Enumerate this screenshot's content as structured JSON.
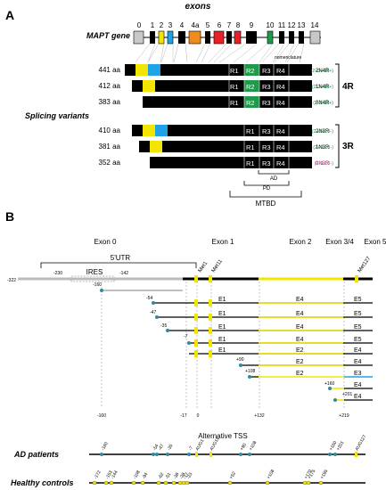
{
  "panel_a": {
    "label": "A",
    "exons_title": "exons",
    "gene_label": "MAPT gene",
    "exon_numbers": [
      "0",
      "1",
      "2",
      "3",
      "4",
      "4a",
      "5",
      "6",
      "7",
      "8",
      "9",
      "10",
      "11",
      "12",
      "13",
      "14"
    ],
    "nomenclature_label": "nomenclature",
    "splicing_label": "Splicing variants",
    "variants": [
      {
        "aa": "441 aa",
        "name": "2N4R",
        "code": "(2+3+10+)",
        "color": "#000000"
      },
      {
        "aa": "412 aa",
        "name": "1N4R",
        "code": "(2-3+10+)",
        "color": "#000000"
      },
      {
        "aa": "383 aa",
        "name": "0N4R",
        "code": "(2-3-10+)",
        "color": "#000000"
      },
      {
        "aa": "410 aa",
        "name": "2N3R",
        "code": "(2+3+10-)",
        "color": "#000000"
      },
      {
        "aa": "381 aa",
        "name": "1N3R",
        "code": "(2+3-10-)",
        "color": "#000000"
      },
      {
        "aa": "352 aa",
        "name": "0N3R",
        "code": "(2-3-10-)",
        "color": "#d6168e"
      }
    ],
    "repeats": [
      "R1",
      "R2",
      "R3",
      "R4"
    ],
    "group_4r": "4R",
    "group_3r": "3R",
    "ad_label": "AD",
    "pd_label": "PD",
    "mtbd_label": "MTBD",
    "colors": {
      "exon2": "#f2e600",
      "exon3": "#1fa3e6",
      "exon4a": "#f08c1e",
      "exon6": "#e8202a",
      "exon8": "#e8202a",
      "exon10": "#1f9a4a",
      "r2": "#1f9a4a",
      "grey": "#c8c8c8"
    }
  },
  "panel_b": {
    "label": "B",
    "exon_headers": [
      "Exon 0",
      "Exon 1",
      "Exon 2",
      "Exon 3/4",
      "Exon 5"
    ],
    "utr_label": "5'UTR",
    "ires_label": "IRES",
    "pos_322": "-322",
    "pos_230": "-230",
    "pos_142": "-142",
    "met_labels": [
      "Met1",
      "Met11",
      "Met127"
    ],
    "tss": [
      "-160",
      "-54",
      "-47",
      "-35",
      "-7",
      "+90",
      "+108",
      "+160",
      "+201"
    ],
    "rows": [
      {
        "a": "E1",
        "b": "E4",
        "c": "E5"
      },
      {
        "a": "E1",
        "b": "E4",
        "c": "E5"
      },
      {
        "a": "E1",
        "b": "E4",
        "c": "E5"
      },
      {
        "a": "E1",
        "b": "E4",
        "c": "E5"
      },
      {
        "a": "E1",
        "b": "E2",
        "c": "E4"
      },
      {
        "a": "",
        "b": "E2",
        "c": "E4"
      },
      {
        "a": "",
        "b": "E2",
        "c": "E3"
      },
      {
        "a": "",
        "b": "",
        "c": "E4"
      },
      {
        "a": "",
        "b": "",
        "c": "E4"
      }
    ],
    "axis": [
      "-160",
      "-17",
      "0",
      "+132",
      "+219"
    ],
    "alt_tss_title": "Alternative TSS",
    "ad_patients": "AD patients",
    "ad_tss": [
      "-160",
      "-54",
      "-47",
      "-35",
      "-7",
      "+90",
      "+108",
      "+160",
      "+201"
    ],
    "ad_augs": [
      "AUG1",
      "AUG11",
      "AUG127"
    ],
    "healthy_controls": "Healthy controls",
    "hc_tss": [
      "-172",
      "-153",
      "-144",
      "-108",
      "-94",
      "-62",
      "-51",
      "-38",
      "-28",
      "-17",
      "-23",
      "+52",
      "+108",
      "+170",
      "+175",
      "+195"
    ]
  }
}
